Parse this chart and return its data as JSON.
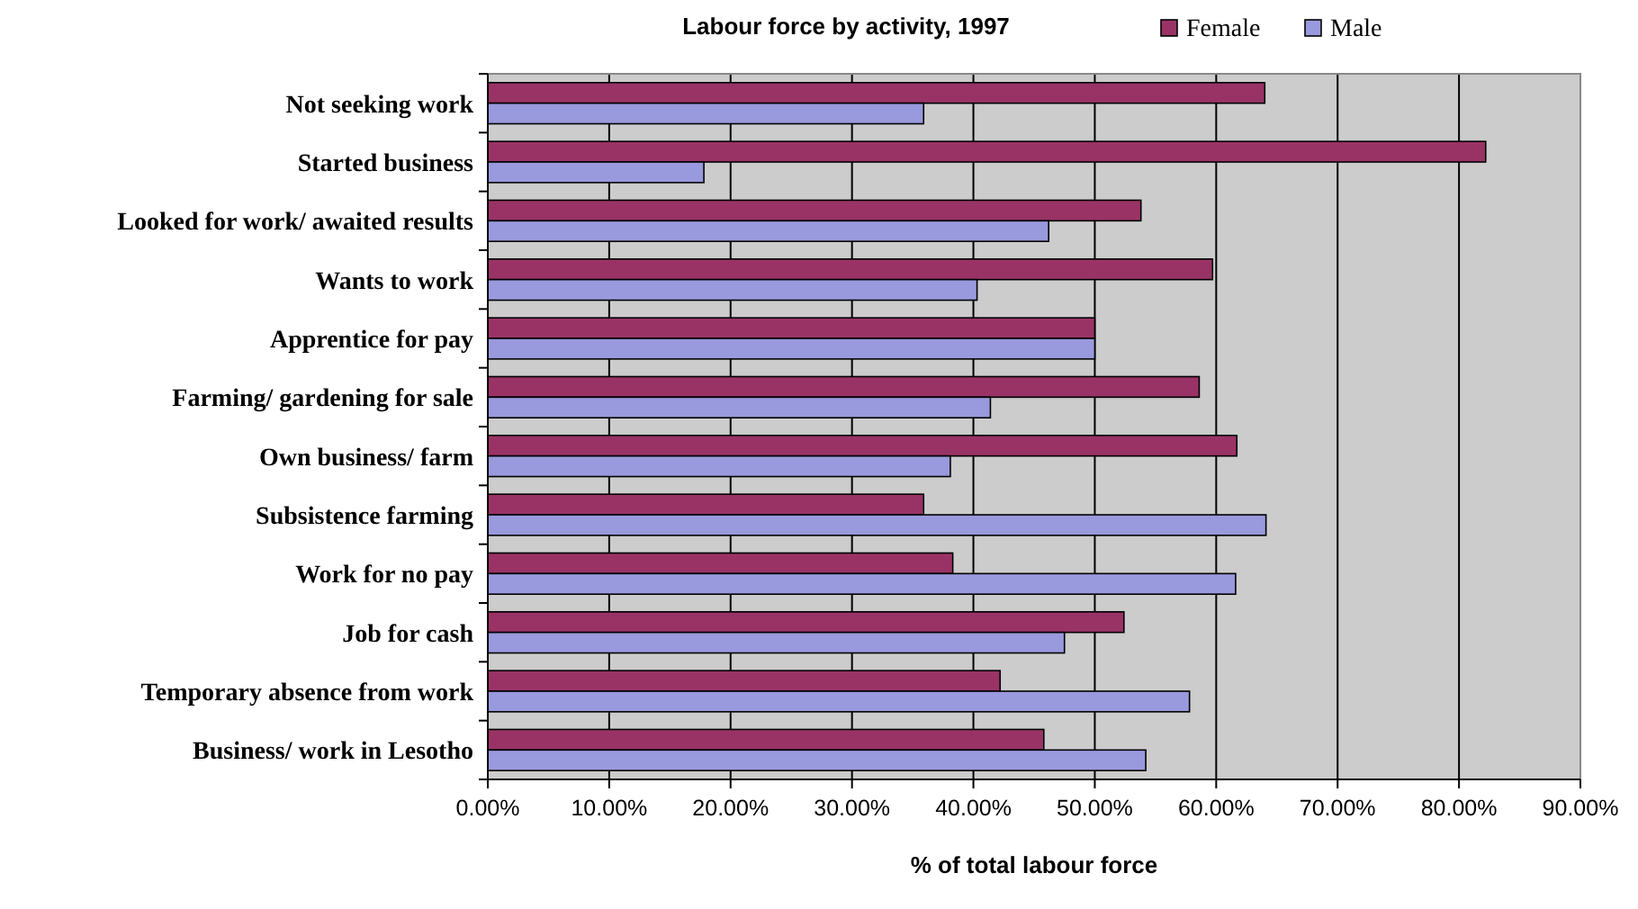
{
  "chart_data": {
    "type": "bar",
    "orientation": "horizontal",
    "title": "Labour force by activity, 1997",
    "xlabel": "% of total labour force",
    "categories": [
      "Not seeking work",
      "Started business",
      "Looked for work/ awaited results",
      "Wants to work ",
      "Apprentice for pay",
      "Farming/ gardening for sale",
      "Own business/ farm",
      "Subsistence farming ",
      "Work for no pay",
      "Job for cash",
      "Temporary absence from work",
      "Business/ work in Lesotho"
    ],
    "series": [
      {
        "name": "Female",
        "color": "#993366",
        "values": [
          64.0,
          82.2,
          53.8,
          59.7,
          50.0,
          58.6,
          61.7,
          35.9,
          38.3,
          52.4,
          42.2,
          45.8
        ]
      },
      {
        "name": "Male",
        "color": "#9999dd",
        "values": [
          35.9,
          17.8,
          46.2,
          40.3,
          50.0,
          41.4,
          38.1,
          64.1,
          61.6,
          47.5,
          57.8,
          54.2
        ]
      }
    ],
    "xlim": [
      0,
      90
    ],
    "xticks": [
      {
        "value": 0,
        "label": "0.00%"
      },
      {
        "value": 10,
        "label": "10.00%"
      },
      {
        "value": 20,
        "label": "20.00%"
      },
      {
        "value": 30,
        "label": "30.00%"
      },
      {
        "value": 40,
        "label": "40.00%"
      },
      {
        "value": 50,
        "label": "50.00%"
      },
      {
        "value": 60,
        "label": "60.00%"
      },
      {
        "value": 70,
        "label": "70.00%"
      },
      {
        "value": 80,
        "label": "80.00%"
      },
      {
        "value": 90,
        "label": "90.00%"
      }
    ],
    "grid": "x",
    "legend": "top right"
  }
}
